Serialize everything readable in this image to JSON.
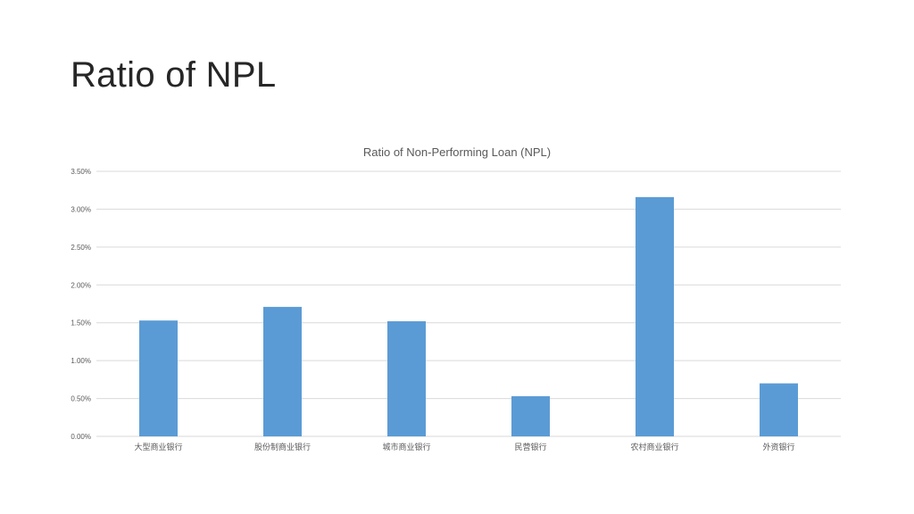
{
  "slide": {
    "title": "Ratio of NPL"
  },
  "colors": {
    "bar": "#5b9bd5",
    "gridline": "#d9d9d9",
    "text": "#595959",
    "title_text": "#262626"
  },
  "chart_data": {
    "type": "bar",
    "title": "Ratio of Non-Performing Loan (NPL)",
    "xlabel": "",
    "ylabel": "",
    "categories": [
      "大型商业银行",
      "股份制商业银行",
      "城市商业银行",
      "民营银行",
      "农村商业银行",
      "外资银行"
    ],
    "values": [
      1.53,
      1.71,
      1.52,
      0.53,
      3.16,
      0.7
    ],
    "value_unit": "%",
    "ylim": [
      0,
      3.5
    ],
    "yticks": [
      "0.00%",
      "0.50%",
      "1.00%",
      "1.50%",
      "2.00%",
      "2.50%",
      "3.00%",
      "3.50%"
    ],
    "grid": true,
    "legend": "none"
  }
}
